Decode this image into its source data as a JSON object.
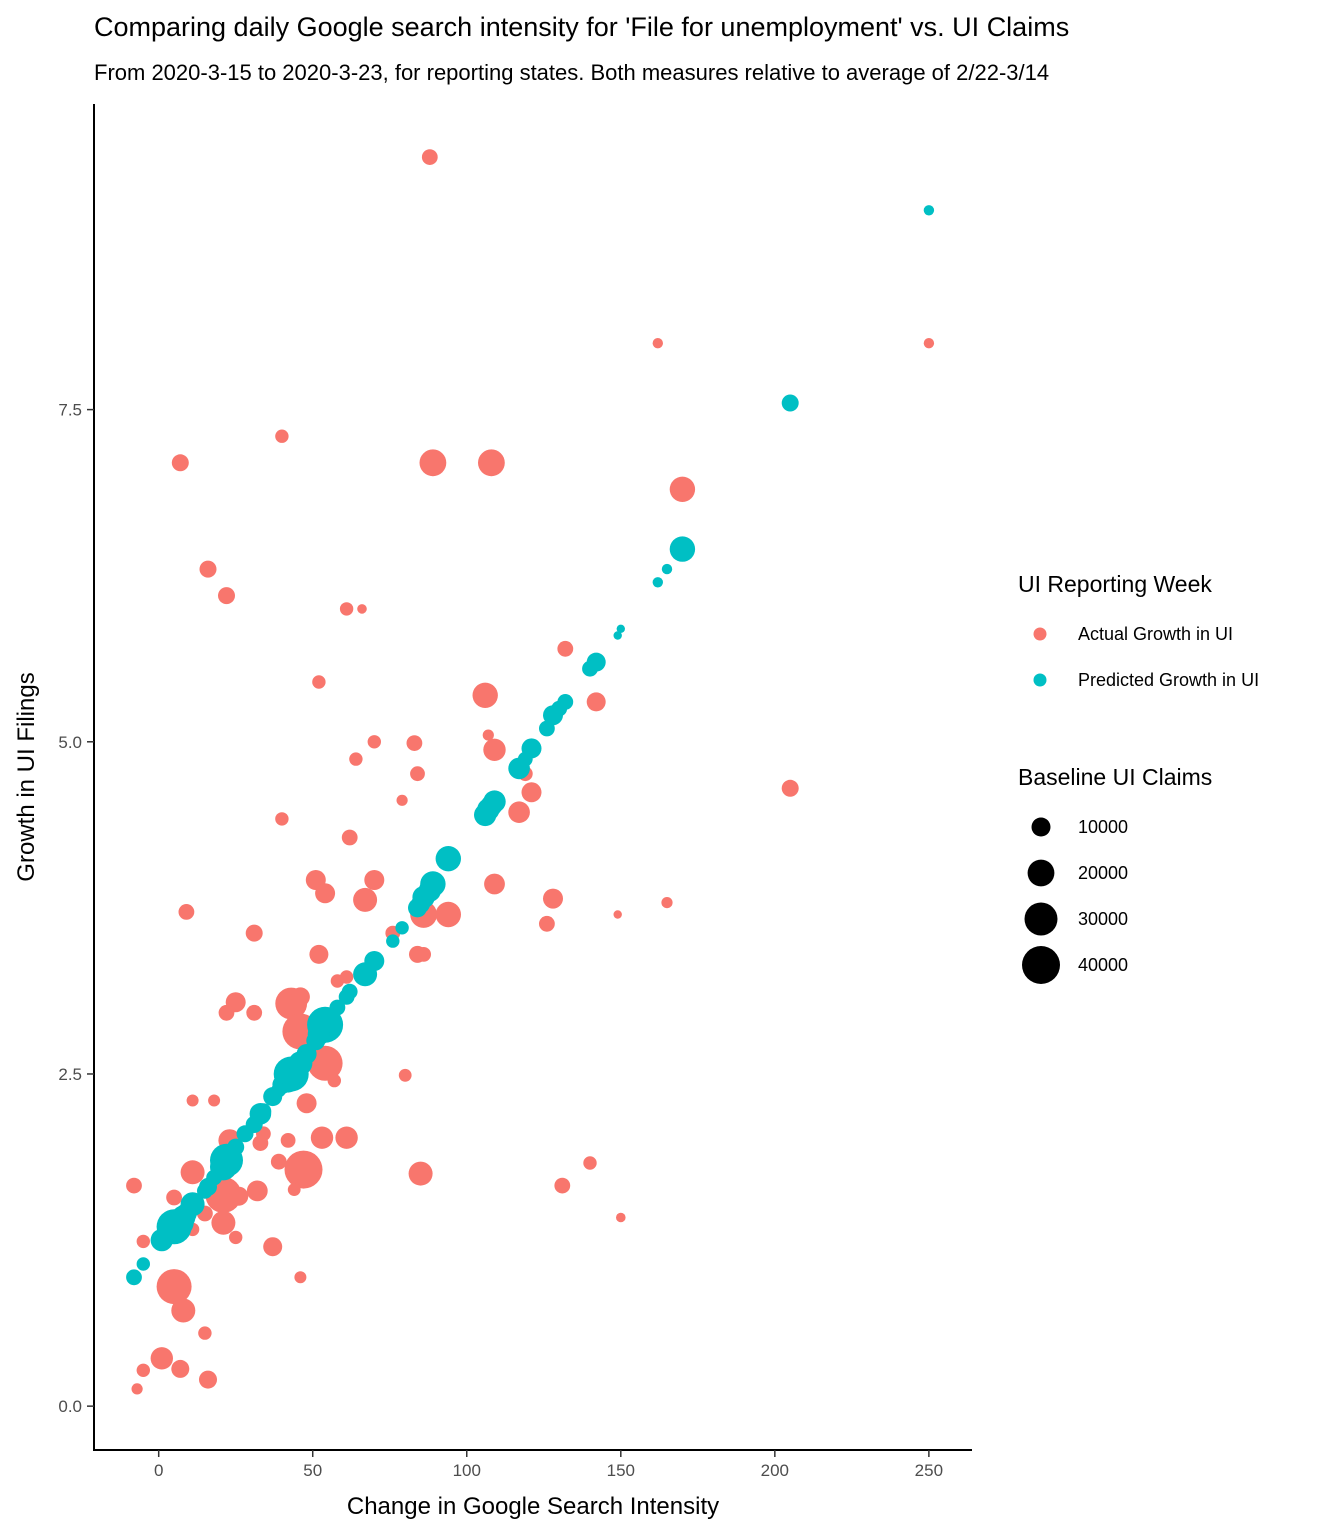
{
  "chart_data": {
    "type": "scatter",
    "title": "Comparing daily Google search intensity for 'File for unemployment' vs. UI Claims",
    "subtitle": "From 2020-3-15 to 2020-3-23, for reporting states. Both measures relative to average of 2/22-3/14",
    "xlabel": "Change in Google Search Intensity",
    "ylabel": "Growth in UI Filings",
    "xlim": [
      -21,
      264
    ],
    "ylim": [
      -0.33,
      9.8
    ],
    "x_ticks": [
      0,
      50,
      100,
      150,
      200,
      250
    ],
    "y_ticks": [
      0.0,
      2.5,
      5.0,
      7.5
    ],
    "x_tick_labels": [
      "0",
      "50",
      "100",
      "150",
      "200",
      "250"
    ],
    "y_tick_labels": [
      "0.0",
      "2.5",
      "5.0",
      "7.5"
    ],
    "grid": false,
    "legend_placement": "right",
    "color_legend": {
      "title": "UI Reporting Week",
      "entries": [
        {
          "label": "Actual Growth in UI",
          "color": "#F8766D"
        },
        {
          "label": "Predicted Growth in UI",
          "color": "#00BFC4"
        }
      ]
    },
    "size_legend": {
      "title": "Baseline UI Claims",
      "values": [
        10000,
        20000,
        30000,
        40000
      ],
      "labels": [
        "10000",
        "20000",
        "30000",
        "40000"
      ]
    },
    "series": [
      {
        "name": "Actual Growth in UI",
        "color": "#F8766D",
        "points": [
          [
            88,
            9.4,
            7000
          ],
          [
            7,
            7.1,
            8000
          ],
          [
            40,
            7.3,
            5000
          ],
          [
            89,
            7.1,
            20000
          ],
          [
            108,
            7.1,
            20000
          ],
          [
            170,
            6.9,
            18000
          ],
          [
            162,
            8.0,
            3000
          ],
          [
            250,
            8.0,
            3000
          ],
          [
            16,
            6.3,
            8000
          ],
          [
            22,
            6.1,
            8000
          ],
          [
            61,
            6.0,
            5000
          ],
          [
            66,
            6.0,
            2500
          ],
          [
            132,
            5.7,
            7000
          ],
          [
            106,
            5.35,
            18000
          ],
          [
            142,
            5.3,
            10000
          ],
          [
            52,
            5.45,
            5000
          ],
          [
            70,
            5.0,
            5000
          ],
          [
            107,
            5.05,
            3500
          ],
          [
            109,
            4.94,
            14000
          ],
          [
            83,
            4.99,
            7000
          ],
          [
            64,
            4.87,
            5000
          ],
          [
            84,
            4.76,
            6000
          ],
          [
            119,
            4.76,
            6000
          ],
          [
            121,
            4.62,
            11000
          ],
          [
            79,
            4.56,
            3500
          ],
          [
            117,
            4.47,
            13000
          ],
          [
            205,
            4.65,
            8000
          ],
          [
            40,
            4.42,
            5000
          ],
          [
            62,
            4.28,
            7000
          ],
          [
            51,
            3.96,
            11000
          ],
          [
            54,
            3.86,
            11000
          ],
          [
            70,
            3.96,
            11000
          ],
          [
            67,
            3.81,
            16000
          ],
          [
            86,
            3.7,
            20000
          ],
          [
            94,
            3.7,
            18000
          ],
          [
            109,
            3.93,
            12000
          ],
          [
            128,
            3.82,
            11000
          ],
          [
            126,
            3.63,
            7000
          ],
          [
            149,
            3.7,
            2000
          ],
          [
            165,
            3.79,
            3500
          ],
          [
            9,
            3.72,
            7000
          ],
          [
            31,
            3.56,
            8000
          ],
          [
            76,
            3.56,
            6000
          ],
          [
            52,
            3.4,
            10000
          ],
          [
            84,
            3.4,
            8000
          ],
          [
            86,
            3.4,
            6000
          ],
          [
            58,
            3.2,
            5000
          ],
          [
            61,
            3.23,
            5000
          ],
          [
            43,
            3.03,
            28000
          ],
          [
            46,
            3.08,
            10000
          ],
          [
            25,
            3.04,
            11000
          ],
          [
            22,
            2.96,
            7000
          ],
          [
            31,
            2.96,
            7000
          ],
          [
            46,
            2.82,
            36000
          ],
          [
            54,
            2.58,
            34000
          ],
          [
            57,
            2.45,
            5000
          ],
          [
            80,
            2.49,
            4500
          ],
          [
            48,
            2.28,
            11000
          ],
          [
            11,
            2.3,
            4000
          ],
          [
            18,
            2.3,
            4000
          ],
          [
            23,
            2.0,
            14000
          ],
          [
            34,
            2.05,
            6000
          ],
          [
            33,
            1.98,
            7000
          ],
          [
            42,
            2.0,
            6000
          ],
          [
            53,
            2.02,
            14000
          ],
          [
            61,
            2.02,
            14000
          ],
          [
            39,
            1.84,
            7000
          ],
          [
            140,
            1.83,
            5000
          ],
          [
            11,
            1.76,
            16000
          ],
          [
            22,
            1.79,
            12000
          ],
          [
            47,
            1.78,
            40000
          ],
          [
            85,
            1.75,
            16000
          ],
          [
            -8,
            1.66,
            7000
          ],
          [
            21,
            1.59,
            36000
          ],
          [
            32,
            1.62,
            12000
          ],
          [
            26,
            1.58,
            10000
          ],
          [
            5,
            1.57,
            7000
          ],
          [
            44,
            1.63,
            4500
          ],
          [
            131,
            1.66,
            7000
          ],
          [
            15,
            1.45,
            7000
          ],
          [
            21,
            1.38,
            16000
          ],
          [
            11,
            1.33,
            5000
          ],
          [
            25,
            1.27,
            5000
          ],
          [
            -5,
            1.24,
            5000
          ],
          [
            37,
            1.2,
            10000
          ],
          [
            150,
            1.42,
            2500
          ],
          [
            46,
            0.97,
            4000
          ],
          [
            5,
            0.9,
            34000
          ],
          [
            8,
            0.72,
            16000
          ],
          [
            15,
            0.55,
            5000
          ],
          [
            1,
            0.36,
            14000
          ],
          [
            7,
            0.28,
            9000
          ],
          [
            -5,
            0.27,
            5000
          ],
          [
            16,
            0.2,
            9000
          ],
          [
            -7,
            0.13,
            3500
          ]
        ]
      },
      {
        "name": "Predicted Growth in UI",
        "color": "#00BFC4",
        "points": [
          [
            250,
            9.0,
            3000
          ],
          [
            205,
            7.55,
            8000
          ],
          [
            170,
            6.45,
            18000
          ],
          [
            165,
            6.3,
            3000
          ],
          [
            162,
            6.2,
            3000
          ],
          [
            150,
            5.85,
            2000
          ],
          [
            149,
            5.8,
            2000
          ],
          [
            142,
            5.6,
            10000
          ],
          [
            140,
            5.55,
            7000
          ],
          [
            132,
            5.3,
            7000
          ],
          [
            130,
            5.25,
            7000
          ],
          [
            128,
            5.2,
            11000
          ],
          [
            126,
            5.1,
            7000
          ],
          [
            121,
            4.95,
            11000
          ],
          [
            119,
            4.87,
            6000
          ],
          [
            117,
            4.8,
            13000
          ],
          [
            109,
            4.55,
            14000
          ],
          [
            108,
            4.52,
            13000
          ],
          [
            107,
            4.49,
            14000
          ],
          [
            106,
            4.45,
            14000
          ],
          [
            94,
            4.12,
            18000
          ],
          [
            89,
            3.93,
            18000
          ],
          [
            88,
            3.88,
            14000
          ],
          [
            86,
            3.83,
            14000
          ],
          [
            85,
            3.78,
            10000
          ],
          [
            84,
            3.75,
            10000
          ],
          [
            79,
            3.6,
            5000
          ],
          [
            76,
            3.5,
            5000
          ],
          [
            70,
            3.35,
            11000
          ],
          [
            67,
            3.25,
            16000
          ],
          [
            62,
            3.12,
            7000
          ],
          [
            61,
            3.08,
            7000
          ],
          [
            58,
            3.0,
            7000
          ],
          [
            54,
            2.87,
            36000
          ],
          [
            52,
            2.8,
            14000
          ],
          [
            51,
            2.75,
            10000
          ],
          [
            48,
            2.65,
            11000
          ],
          [
            46,
            2.58,
            16000
          ],
          [
            44,
            2.52,
            6000
          ],
          [
            43,
            2.5,
            34000
          ],
          [
            42,
            2.45,
            16000
          ],
          [
            40,
            2.42,
            10000
          ],
          [
            39,
            2.38,
            6000
          ],
          [
            37,
            2.33,
            10000
          ],
          [
            34,
            2.22,
            7000
          ],
          [
            33,
            2.2,
            13000
          ],
          [
            31,
            2.12,
            8000
          ],
          [
            28,
            2.05,
            8000
          ],
          [
            25,
            1.95,
            8000
          ],
          [
            23,
            1.88,
            14000
          ],
          [
            22,
            1.85,
            30000
          ],
          [
            21,
            1.8,
            20000
          ],
          [
            18,
            1.72,
            7000
          ],
          [
            16,
            1.65,
            9000
          ],
          [
            15,
            1.62,
            7000
          ],
          [
            11,
            1.52,
            16000
          ],
          [
            9,
            1.45,
            12000
          ],
          [
            8,
            1.42,
            16000
          ],
          [
            7,
            1.38,
            20000
          ],
          [
            5,
            1.35,
            34000
          ],
          [
            1,
            1.25,
            14000
          ],
          [
            -5,
            1.07,
            5000
          ],
          [
            -8,
            0.97,
            7000
          ]
        ]
      }
    ]
  }
}
